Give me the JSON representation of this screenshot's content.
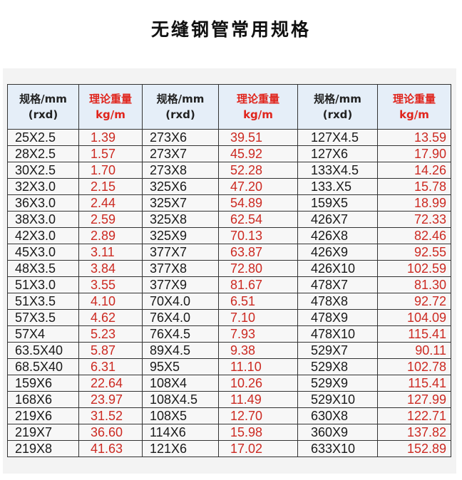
{
  "title": "无缝钢管常用规格",
  "header": {
    "spec_line1": "规格/mm",
    "spec_line2": "(rxd)",
    "weight_line1": "理论重量",
    "weight_line2": "kg/m"
  },
  "colors": {
    "header_bg": "#e5eef8",
    "weight_text": "#cc2a22",
    "header_weight_text": "#e0241c"
  },
  "rows": [
    [
      "25X2.5",
      "1.39",
      "273X6",
      "39.51",
      "127X4.5",
      "13.59"
    ],
    [
      "28X2.5",
      "1.57",
      "273X7",
      "45.92",
      "127X6",
      "17.90"
    ],
    [
      "30X2.5",
      "1.70",
      "273X8",
      "52.28",
      "133X4.5",
      "14.26"
    ],
    [
      "32X3.0",
      "2.15",
      "325X6",
      "47.20",
      "133.X5",
      "15.78"
    ],
    [
      "36X3.0",
      "2.44",
      "325X7",
      "54.89",
      "159X5",
      "18.99"
    ],
    [
      "38X3.0",
      "2.59",
      "325X8",
      "62.54",
      "426X7",
      "72.33"
    ],
    [
      "42X3.0",
      "2.89",
      "325X9",
      "70.13",
      "426X8",
      "82.46"
    ],
    [
      "45X3.0",
      "3.11",
      "377X7",
      "63.87",
      "426X9",
      "92.55"
    ],
    [
      "48X3.5",
      "3.84",
      "377X8",
      "72.80",
      "426X10",
      "102.59"
    ],
    [
      "51X3.0",
      "3.55",
      "377X9",
      "81.67",
      "478X7",
      "81.30"
    ],
    [
      "51X3.5",
      "4.10",
      "70X4.0",
      "6.51",
      "478X8",
      "92.72"
    ],
    [
      "57X3.5",
      "4.62",
      "76X4.0",
      "7.10",
      "478X9",
      "104.09"
    ],
    [
      "57X4",
      "5.23",
      "76X4.5",
      "7.93",
      "478X10",
      "115.41"
    ],
    [
      "63.5X40",
      "5.87",
      "89X4.5",
      "9.38",
      "529X7",
      "90.11"
    ],
    [
      "68.5X40",
      "6.31",
      "95X5",
      "11.10",
      "529X8",
      "102.78"
    ],
    [
      "159X6",
      "22.64",
      "108X4",
      "10.26",
      "529X9",
      "115.41"
    ],
    [
      "168X6",
      "23.97",
      "108X4.5",
      "11.49",
      "529X10",
      "127.99"
    ],
    [
      "219X6",
      "31.52",
      "108X5",
      "12.70",
      "630X8",
      "122.71"
    ],
    [
      "219X7",
      "36.60",
      "114X6",
      "15.98",
      "360X9",
      "137.82"
    ],
    [
      "219X8",
      "41.63",
      "121X6",
      "17.02",
      "633X10",
      "152.89"
    ]
  ]
}
